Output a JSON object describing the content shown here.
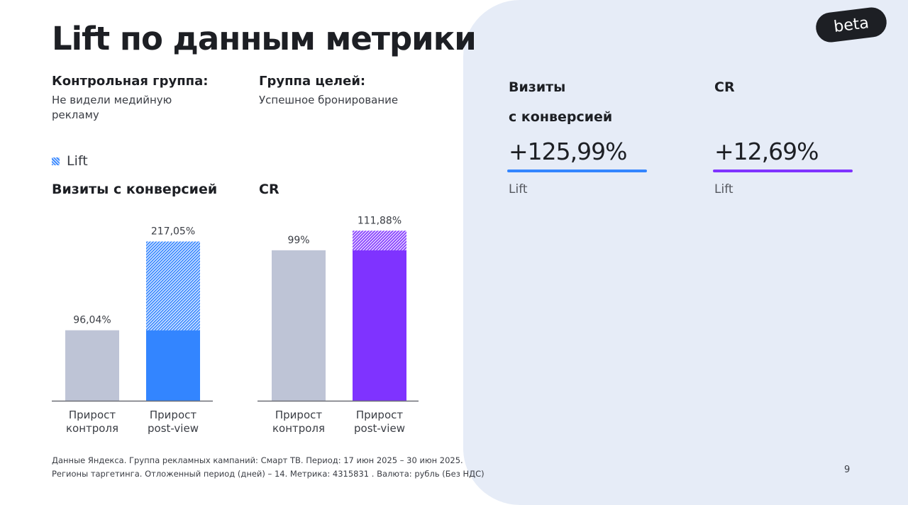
{
  "title": "Lift по данным метрики",
  "control_group": {
    "label": "Контрольная группа:",
    "value": "Не видели медийную рекламу"
  },
  "goal_group": {
    "label": "Группа целей:",
    "value": "Успешное бронирование"
  },
  "legend": {
    "label": "Lift",
    "icon": "hatched-square-icon"
  },
  "colors": {
    "control": "#bec4d6",
    "visits": "#3385ff",
    "cr": "#7f33ff",
    "panel": "#e6ecf7"
  },
  "chart_data": [
    {
      "type": "bar",
      "title": "Визиты с конверсией",
      "categories": [
        "Прирост контроля",
        "Прирост post-view"
      ],
      "category_lines": [
        [
          "Прирост",
          "контроля"
        ],
        [
          "Прирост",
          "post-view"
        ]
      ],
      "values": [
        96.04,
        217.05
      ],
      "base_values": [
        96.04,
        96.04
      ],
      "labels": [
        "96,04%",
        "217,05%"
      ],
      "ylim": [
        0,
        232
      ],
      "grid": false,
      "hatched_part": "Lift"
    },
    {
      "type": "bar",
      "title": "CR",
      "categories": [
        "Прирост контроля",
        "Прирост post-view"
      ],
      "category_lines": [
        [
          "Прирост",
          "контроля"
        ],
        [
          "Прирост",
          "post-view"
        ]
      ],
      "values": [
        99,
        111.88
      ],
      "base_values": [
        99,
        99
      ],
      "labels": [
        "99%",
        "111,88%"
      ],
      "ylim": [
        0,
        112
      ],
      "grid": false,
      "hatched_part": "Lift"
    }
  ],
  "badge": "beta",
  "metrics": [
    {
      "name1": "Визиты",
      "name2": "с конверсией",
      "value": "+125,99%",
      "caption": "Lift"
    },
    {
      "name1": "CR",
      "name2": "",
      "value": "+12,69%",
      "caption": "Lift"
    }
  ],
  "footer": {
    "line1": "Данные Яндекса. Группа рекламных кампаний: Смарт ТВ. Период: 17 июн 2025 – 30 июн 2025.",
    "line2": "Регионы таргетинга. Отложенный период (дней) – 14. Метрика: 4315831 . Валюта: рубль (Без НДС)"
  },
  "page_number": "9"
}
